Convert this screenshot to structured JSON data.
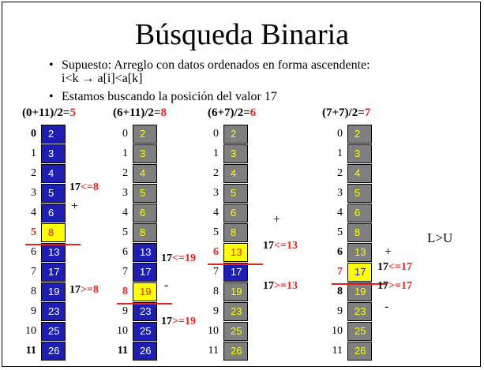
{
  "title": "Búsqueda Binaria",
  "bullets": [
    {
      "line1": "Supuesto:  Arreglo con datos ordenados en forma ascendente:",
      "line2": "i<k  → a[i]<a[k]"
    },
    {
      "line1": "Estamos buscando la posición del valor 17"
    }
  ],
  "array_values": [
    "2",
    "3",
    "4",
    "5",
    "6",
    "8",
    "13",
    "17",
    "19",
    "23",
    "25",
    "26"
  ],
  "steps": [
    {
      "formula": "(0+11)/2=",
      "mid": "5",
      "cells": [
        "b",
        "b",
        "b",
        "b",
        "b",
        "yr",
        "b",
        "b",
        "b",
        "b",
        "b",
        "b"
      ],
      "bold_idx": [
        0,
        11
      ],
      "red_idx": [
        5
      ],
      "cmp_top": {
        "left": "17",
        "op": "<=",
        "right": "8"
      },
      "sign_top": "+",
      "cmp_bottom": {
        "left": "17",
        "op": ">=",
        "right": "8"
      }
    },
    {
      "formula": "(6+11)/2=",
      "mid": "8",
      "cells": [
        "g",
        "g",
        "g",
        "g",
        "g",
        "g",
        "b",
        "b",
        "yr",
        "b",
        "b",
        "b"
      ],
      "bold_idx": [
        11
      ],
      "red_idx": [
        8
      ],
      "cmp_top": {
        "left": "17",
        "op": "<=",
        "right": "19"
      },
      "sign_mid": "-",
      "cmp_bottom": {
        "left": "17",
        "op": ">=",
        "right": "19"
      }
    },
    {
      "formula": "(6+7)/2=",
      "mid": "6",
      "cells": [
        "g",
        "g",
        "g",
        "g",
        "g",
        "g",
        "yr",
        "b",
        "g",
        "g",
        "g",
        "g"
      ],
      "bold_idx": [],
      "red_idx": [
        6
      ],
      "sign_top": "+",
      "cmp_top": {
        "left": "17",
        "op": "<=",
        "right": "13"
      },
      "cmp_bottom": {
        "left": "17",
        "op": ">=",
        "right": "13"
      }
    },
    {
      "formula": "(7+7)/2=",
      "mid": "7",
      "cells": [
        "g",
        "g",
        "g",
        "g",
        "g",
        "g",
        "g",
        "yb",
        "g",
        "g",
        "g",
        "g"
      ],
      "bold_idx": [
        6,
        8
      ],
      "red_idx": [
        7
      ],
      "sign_top": "+",
      "cmp_top": {
        "left": "17",
        "op": "<=",
        "right": "17"
      },
      "cmp_bottom": {
        "left": "17",
        "op": ">=",
        "right": "17"
      },
      "sign_bottom": "-"
    }
  ],
  "result": "L>U",
  "colors": {
    "blue": "#1e1eb4",
    "gray": "#7f7f7f",
    "yellow": "#ffff00",
    "red": "#e8231e"
  }
}
